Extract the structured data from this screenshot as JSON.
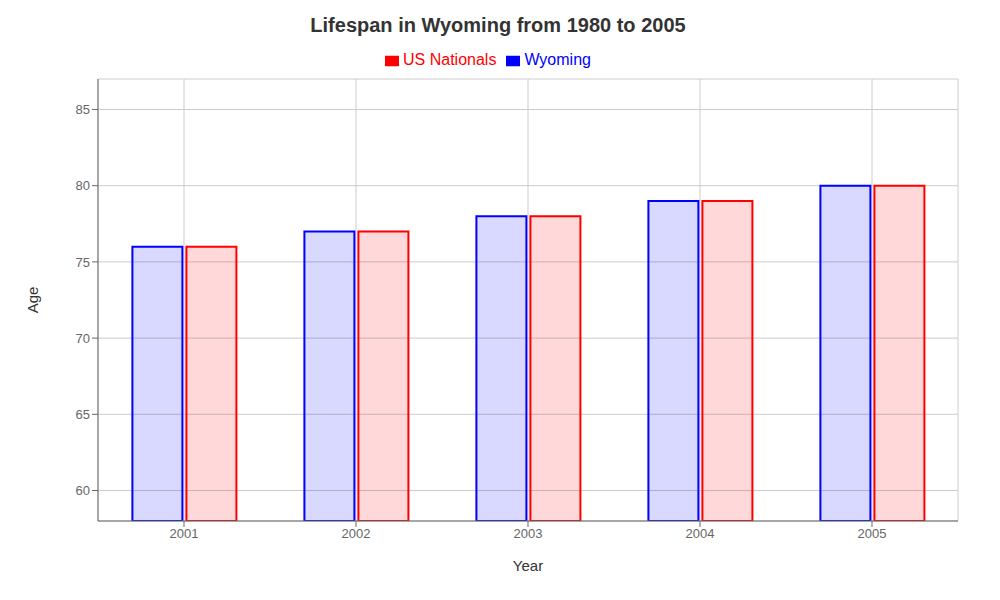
{
  "chart_data": {
    "type": "bar",
    "title": "Lifespan in Wyoming from 1980 to 2005",
    "categories": [
      "2001",
      "2002",
      "2003",
      "2004",
      "2005"
    ],
    "series": [
      {
        "name": "Wyoming",
        "color": "#0000ff",
        "values": [
          76,
          77,
          78,
          79,
          80
        ]
      },
      {
        "name": "US Nationals",
        "color": "#ff0000",
        "values": [
          76,
          77,
          78,
          79,
          80
        ]
      }
    ],
    "x_label": "Year",
    "y_label": "Age",
    "ylim": [
      58,
      87
    ],
    "yticks": [
      60,
      65,
      70,
      75,
      80,
      85
    ],
    "grid": true,
    "legend": "top"
  }
}
